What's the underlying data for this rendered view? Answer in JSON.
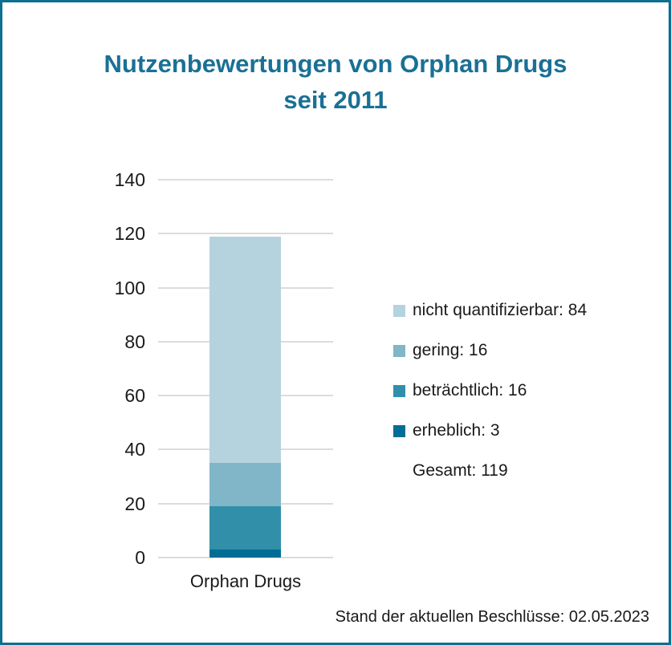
{
  "frame": {
    "border_color": "#0d6f92",
    "background": "#ffffff"
  },
  "title": {
    "text": "Nutzenbewertungen von Orphan Drugs seit 2011",
    "line1": "Nutzenbewertungen von Orphan Drugs",
    "line2": "seit 2011",
    "color": "#1a7095"
  },
  "chart_data": {
    "type": "bar",
    "stacked": true,
    "categories": [
      "Orphan Drugs"
    ],
    "series": [
      {
        "name": "nicht quantifizierbar",
        "values": [
          84
        ],
        "color": "#b4d3de"
      },
      {
        "name": "gering",
        "values": [
          16
        ],
        "color": "#80b6c8"
      },
      {
        "name": "beträchtlich",
        "values": [
          16
        ],
        "color": "#318fa9"
      },
      {
        "name": "erheblich",
        "values": [
          3
        ],
        "color": "#006e94"
      }
    ],
    "total": 119,
    "title": "Nutzenbewertungen von Orphan Drugs seit 2011",
    "xlabel": "",
    "ylabel": "",
    "ylim": [
      0,
      140
    ],
    "yticks": [
      0,
      20,
      40,
      60,
      80,
      100,
      120,
      140
    ],
    "grid": true,
    "gridline_color": "#dcdcdc",
    "legend_position": "right"
  },
  "legend": {
    "items": [
      {
        "label": "nicht quantifizierbar: 84",
        "color": "#b4d3de"
      },
      {
        "label": "gering: 16",
        "color": "#80b6c8"
      },
      {
        "label": "beträchtlich: 16",
        "color": "#318fa9"
      },
      {
        "label": "erheblich: 3",
        "color": "#006e94"
      }
    ],
    "total_label": "Gesamt: 119"
  },
  "x_axis": {
    "label": "Orphan Drugs"
  },
  "footer": {
    "text": "Stand der aktuellen Beschlüsse: 02.05.2023"
  }
}
